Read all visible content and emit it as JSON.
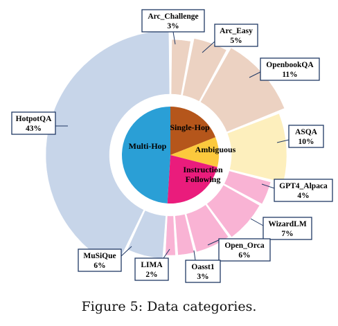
{
  "chart_data": {
    "type": "pie",
    "caption": "Figure 5: Data categories.",
    "groups": [
      {
        "name": "Single-Hop",
        "lines": [
          "Single-Hop"
        ],
        "color": "#b5561b",
        "start": 0,
        "end": 19
      },
      {
        "name": "Ambiguous",
        "lines": [
          "Ambiguous"
        ],
        "color": "#fcc93d",
        "start": 19,
        "end": 29
      },
      {
        "name": "Instruction Following",
        "lines": [
          "Instruction",
          "Following"
        ],
        "color": "#ea1c7c",
        "start": 29,
        "end": 51
      },
      {
        "name": "Multi-Hop",
        "lines": [
          "Multi-Hop"
        ],
        "color": "#2a9fd6",
        "start": 51,
        "end": 100
      }
    ],
    "slices": [
      {
        "label": "Arc_Challenge",
        "value_text": "3%",
        "value": 3,
        "start": 0,
        "end": 3,
        "color": "#ecd2c2",
        "outer": 167
      },
      {
        "label": "Arc_Easy",
        "value_text": "5%",
        "value": 5,
        "start": 3,
        "end": 8,
        "color": "#ecd2c2",
        "outer": 172
      },
      {
        "label": "OpenbookQA",
        "value_text": "11%",
        "value": 11,
        "start": 8,
        "end": 19,
        "color": "#ecd2c2",
        "outer": 178
      },
      {
        "label": "ASQA",
        "value_text": "10%",
        "value": 10,
        "start": 19,
        "end": 29,
        "color": "#fdefbd",
        "outer": 168
      },
      {
        "label": "GPT4_Alpaca",
        "value_text": "4%",
        "value": 4,
        "start": 29,
        "end": 33,
        "color": "#f9b3d4",
        "outer": 150
      },
      {
        "label": "WizardLM",
        "value_text": "7%",
        "value": 7,
        "start": 33,
        "end": 40,
        "color": "#f9b3d4",
        "outer": 148
      },
      {
        "label": "Open_Orca",
        "value_text": "6%",
        "value": 6,
        "start": 40,
        "end": 46,
        "color": "#f9b3d4",
        "outer": 145
      },
      {
        "label": "Oasst1",
        "value_text": "3%",
        "value": 3,
        "start": 46,
        "end": 49,
        "color": "#f9b3d4",
        "outer": 145
      },
      {
        "label": "LIMA",
        "value_text": "2%",
        "value": 2,
        "start": 49,
        "end": 51,
        "color": "#f9b3d4",
        "outer": 145
      },
      {
        "label": "MuSiQue",
        "value_text": "6%",
        "value": 6,
        "start": 51,
        "end": 57,
        "color": "#c7d5e9",
        "outer": 150
      },
      {
        "label": "HotpotQA",
        "value_text": "43%",
        "value": 43,
        "start": 57,
        "end": 100,
        "color": "#c7d5e9",
        "outer": 180
      }
    ]
  }
}
